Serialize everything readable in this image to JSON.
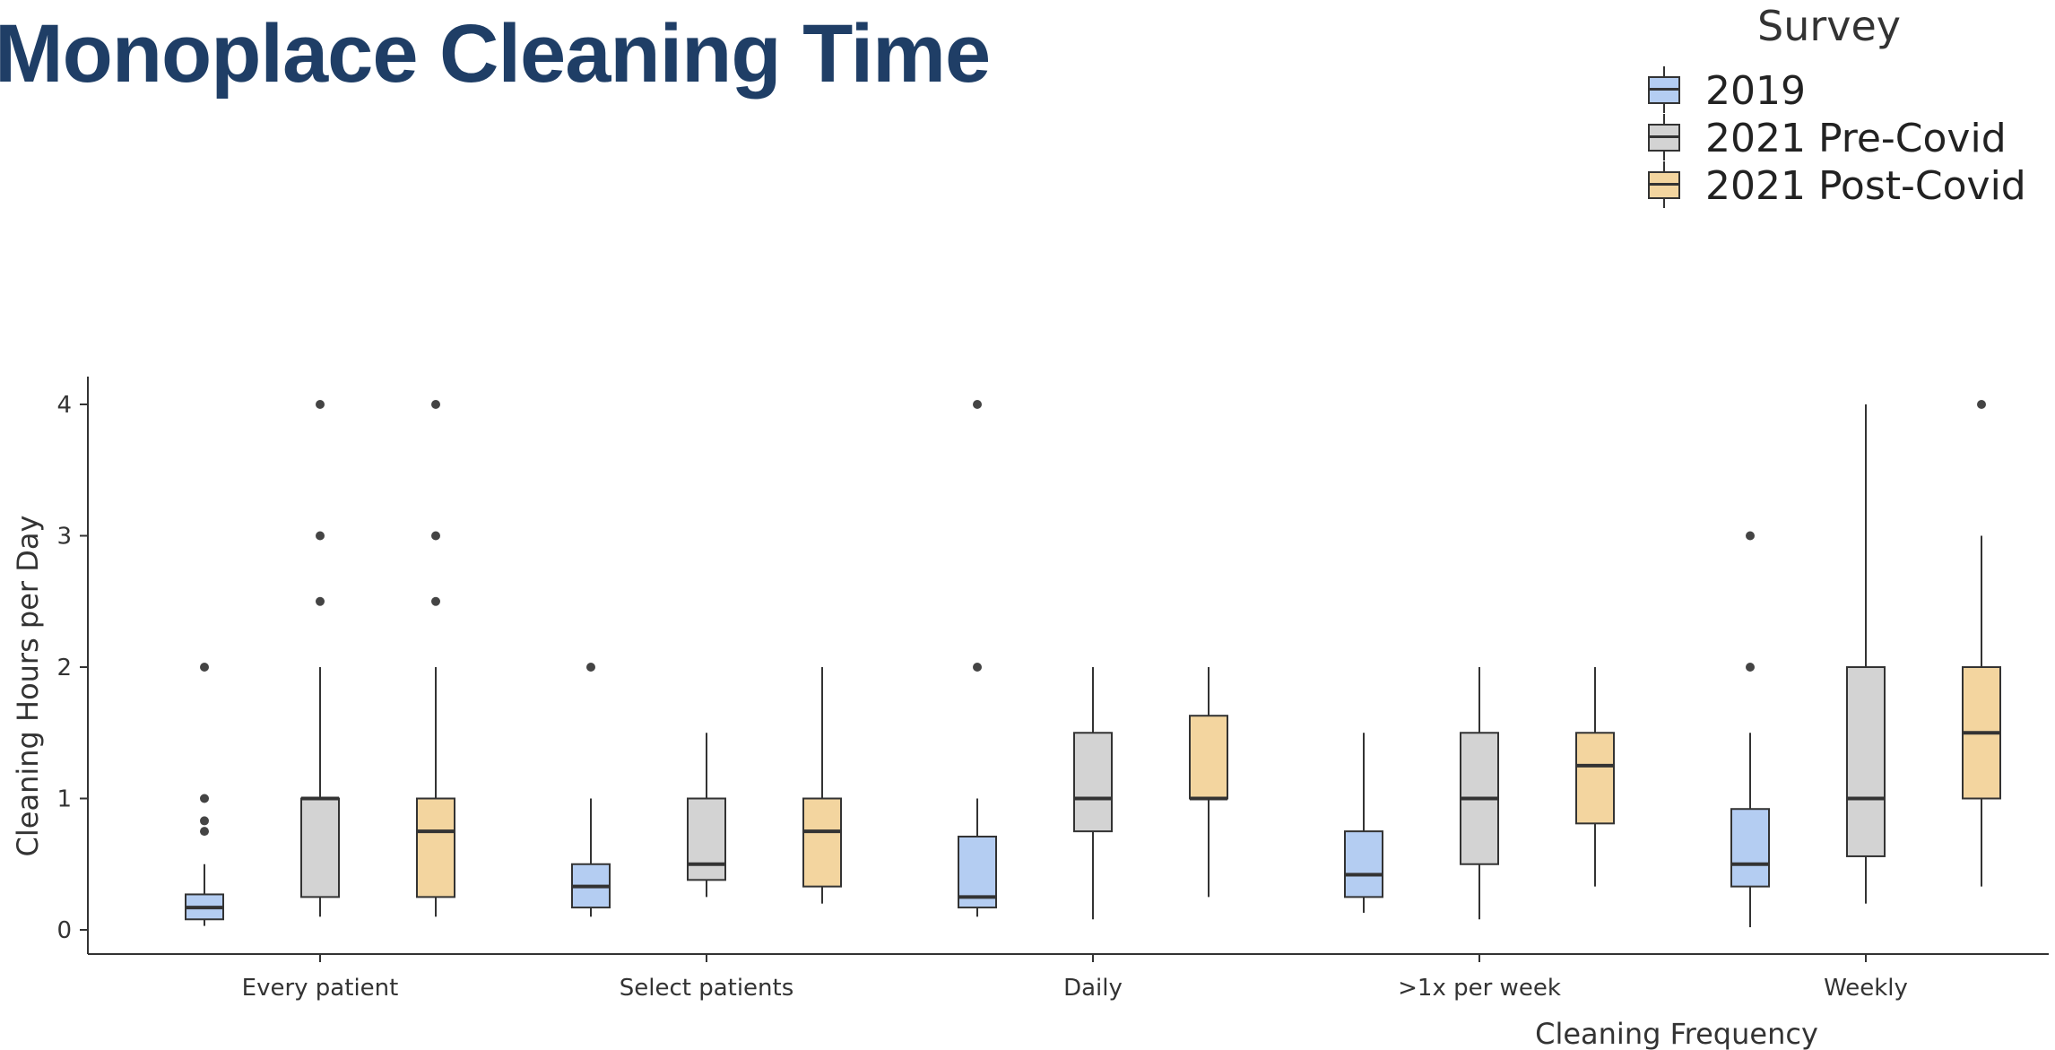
{
  "title": "Monoplace Cleaning Time",
  "legend": {
    "title": "Survey",
    "items": [
      {
        "label": "2019",
        "color": "#b4cdf2"
      },
      {
        "label": "2021 Pre-Covid",
        "color": "#d3d3d3"
      },
      {
        "label": "2021 Post-Covid",
        "color": "#f3d59f"
      }
    ]
  },
  "chart_data": {
    "type": "boxplot",
    "xlabel": "Cleaning Frequency",
    "ylabel": "Cleaning Hours per Day",
    "ylim": [
      0,
      4
    ],
    "yticks": [
      0,
      1,
      2,
      3,
      4
    ],
    "grid": false,
    "legend_position": "top-right",
    "categories": [
      "Every patient",
      "Select patients",
      "Daily",
      ">1x per week",
      "Weekly"
    ],
    "series": [
      {
        "name": "2019",
        "color": "#b4cdf2",
        "boxes": [
          {
            "min": 0.03,
            "q1": 0.08,
            "median": 0.17,
            "q3": 0.27,
            "max": 0.5,
            "outliers": [
              0.75,
              0.83,
              1.0,
              2.0
            ]
          },
          {
            "min": 0.1,
            "q1": 0.17,
            "median": 0.33,
            "q3": 0.5,
            "max": 1.0,
            "outliers": [
              2.0
            ]
          },
          {
            "min": 0.1,
            "q1": 0.17,
            "median": 0.25,
            "q3": 0.71,
            "max": 1.0,
            "outliers": [
              2.0,
              4.0
            ]
          },
          {
            "min": 0.13,
            "q1": 0.25,
            "median": 0.42,
            "q3": 0.75,
            "max": 1.5,
            "outliers": []
          },
          {
            "min": 0.02,
            "q1": 0.33,
            "median": 0.5,
            "q3": 0.92,
            "max": 1.5,
            "outliers": [
              2.0,
              3.0
            ]
          }
        ]
      },
      {
        "name": "2021 Pre-Covid",
        "color": "#d3d3d3",
        "boxes": [
          {
            "min": 0.1,
            "q1": 0.25,
            "median": 1.0,
            "q3": 1.0,
            "max": 2.0,
            "outliers": [
              2.5,
              3.0,
              4.0
            ]
          },
          {
            "min": 0.25,
            "q1": 0.38,
            "median": 0.5,
            "q3": 1.0,
            "max": 1.5,
            "outliers": []
          },
          {
            "min": 0.08,
            "q1": 0.75,
            "median": 1.0,
            "q3": 1.5,
            "max": 2.0,
            "outliers": []
          },
          {
            "min": 0.08,
            "q1": 0.5,
            "median": 1.0,
            "q3": 1.5,
            "max": 2.0,
            "outliers": []
          },
          {
            "min": 0.2,
            "q1": 0.56,
            "median": 1.0,
            "q3": 2.0,
            "max": 4.0,
            "outliers": []
          }
        ]
      },
      {
        "name": "2021 Post-Covid",
        "color": "#f3d59f",
        "boxes": [
          {
            "min": 0.1,
            "q1": 0.25,
            "median": 0.75,
            "q3": 1.0,
            "max": 2.0,
            "outliers": [
              2.5,
              3.0,
              4.0
            ]
          },
          {
            "min": 0.2,
            "q1": 0.33,
            "median": 0.75,
            "q3": 1.0,
            "max": 2.0,
            "outliers": []
          },
          {
            "min": 0.25,
            "q1": 1.0,
            "median": 1.0,
            "q3": 1.63,
            "max": 2.0,
            "outliers": []
          },
          {
            "min": 0.33,
            "q1": 0.81,
            "median": 1.25,
            "q3": 1.5,
            "max": 2.0,
            "outliers": []
          },
          {
            "min": 0.33,
            "q1": 1.0,
            "median": 1.5,
            "q3": 2.0,
            "max": 3.0,
            "outliers": [
              4.0
            ]
          }
        ]
      }
    ]
  }
}
